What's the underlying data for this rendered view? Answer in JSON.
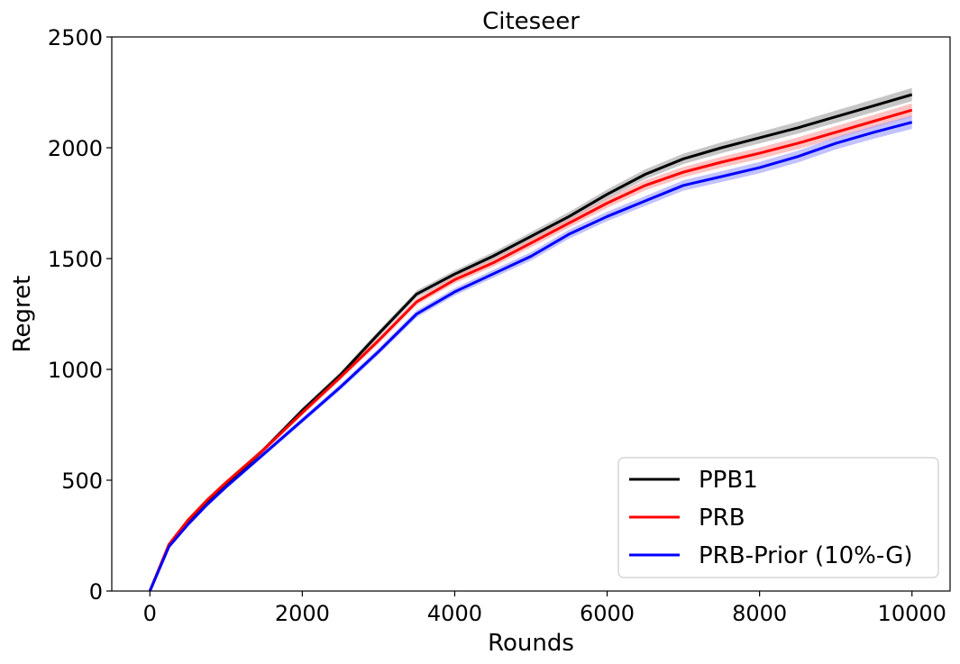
{
  "chart_data": {
    "type": "line",
    "title": "Citeseer",
    "xlabel": "Rounds",
    "ylabel": "Regret",
    "xlim": [
      -500,
      10500
    ],
    "ylim": [
      0,
      2500
    ],
    "xticks": [
      0,
      2000,
      4000,
      6000,
      8000,
      10000
    ],
    "yticks": [
      0,
      500,
      1000,
      1500,
      2000,
      2500
    ],
    "legend_position": "lower-right",
    "grid": false,
    "x": [
      0,
      250,
      500,
      750,
      1000,
      1500,
      2000,
      2500,
      3000,
      3500,
      4000,
      4500,
      5000,
      5500,
      6000,
      6500,
      7000,
      7500,
      8000,
      8500,
      9000,
      9500,
      10000
    ],
    "series": [
      {
        "name": "PPB1",
        "color": "#000000",
        "band_color": "#a0a0a0",
        "values": [
          0,
          205,
          310,
          400,
          480,
          640,
          815,
          975,
          1160,
          1340,
          1430,
          1510,
          1600,
          1690,
          1790,
          1880,
          1950,
          2000,
          2045,
          2090,
          2140,
          2190,
          2240
        ]
      },
      {
        "name": "PRB",
        "color": "#ff0000",
        "band_color": "#ff9999",
        "values": [
          0,
          210,
          320,
          410,
          490,
          640,
          805,
          965,
          1130,
          1305,
          1405,
          1480,
          1570,
          1660,
          1750,
          1830,
          1890,
          1935,
          1975,
          2020,
          2070,
          2120,
          2170
        ]
      },
      {
        "name": "PRB-Prior (10%-G)",
        "color": "#0000ff",
        "band_color": "#9999ff",
        "values": [
          0,
          200,
          300,
          390,
          470,
          620,
          770,
          920,
          1080,
          1250,
          1350,
          1430,
          1510,
          1610,
          1690,
          1760,
          1830,
          1870,
          1910,
          1960,
          2020,
          2070,
          2115
        ]
      }
    ]
  }
}
